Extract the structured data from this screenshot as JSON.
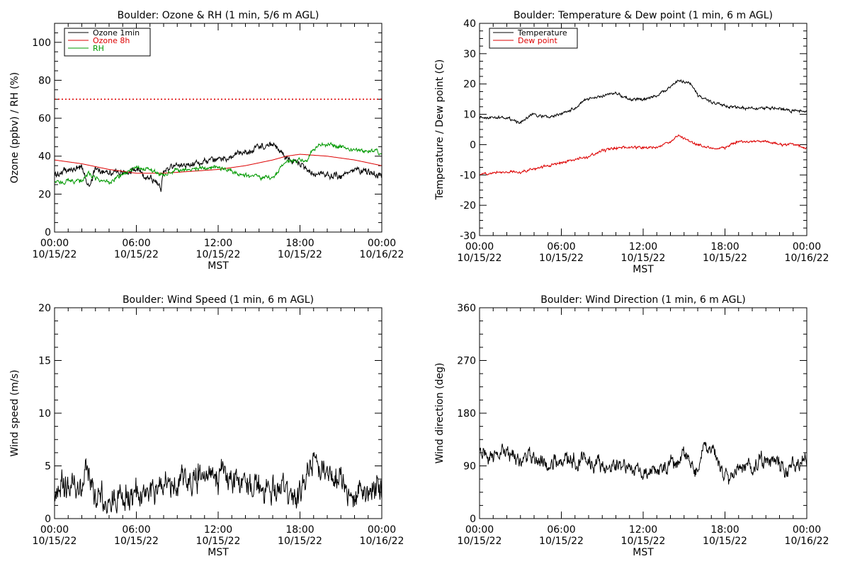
{
  "chart_data": [
    {
      "type": "line",
      "title": "Boulder: Ozone & RH (1 min, 5/6 m AGL)",
      "xlabel": "MST",
      "ylabel": "Ozone (ppbv) / RH (%)",
      "ylim": [
        0,
        110
      ],
      "yticks": [
        0,
        20,
        40,
        60,
        80,
        100
      ],
      "xlim": [
        0,
        24
      ],
      "xticks": [
        {
          "time": "00:00",
          "date": "10/15/22"
        },
        {
          "time": "06:00",
          "date": "10/15/22"
        },
        {
          "time": "12:00",
          "date": "10/15/22"
        },
        {
          "time": "18:00",
          "date": "10/15/22"
        },
        {
          "time": "00:00",
          "date": "10/16/22"
        }
      ],
      "legend_position": "top-left",
      "reference_lines": [
        {
          "y": 70,
          "color": "#dd0000",
          "style": "dotted"
        }
      ],
      "series": [
        {
          "name": "Ozone 1min",
          "color": "#000000",
          "x": [
            0,
            1,
            2,
            2.5,
            3,
            4,
            5,
            6,
            6.5,
            7,
            7.5,
            7.8,
            8,
            9,
            10,
            11,
            12,
            13,
            14,
            15,
            16,
            16.5,
            17,
            18,
            18.5,
            19,
            20,
            21,
            22,
            23,
            24
          ],
          "values": [
            30,
            33,
            34,
            24,
            33,
            32,
            31,
            33,
            30,
            29,
            26,
            22,
            33,
            35,
            36,
            37,
            38,
            40,
            42,
            45,
            46,
            43,
            39,
            36,
            32,
            31,
            30,
            29,
            33,
            32,
            30
          ]
        },
        {
          "name": "Ozone 8h",
          "color": "#dd0000",
          "x": [
            0,
            2,
            4,
            6,
            8,
            10,
            12,
            14,
            16,
            17,
            18,
            20,
            22,
            24
          ],
          "values": [
            38,
            36,
            33,
            31,
            31,
            32,
            33,
            35,
            38,
            40,
            41,
            40,
            38,
            35
          ]
        },
        {
          "name": "RH",
          "color": "#009900",
          "x": [
            0,
            1,
            2,
            2.5,
            3,
            4,
            5,
            6,
            7,
            8,
            9,
            10,
            11,
            12,
            13,
            14,
            15,
            16,
            16.5,
            17,
            18,
            18.5,
            19,
            19.5,
            20,
            21,
            22,
            23,
            24
          ],
          "values": [
            26,
            27,
            27,
            31,
            28,
            26,
            30,
            34,
            33,
            30,
            33,
            33,
            34,
            34,
            32,
            30,
            29,
            29,
            33,
            37,
            38,
            38,
            44,
            46,
            46,
            45,
            43,
            43,
            42
          ]
        }
      ]
    },
    {
      "type": "line",
      "title": "Boulder: Temperature & Dew point (1 min, 6 m AGL)",
      "xlabel": "MST",
      "ylabel": "Temperature / Dew point (C)",
      "ylim": [
        -30,
        40
      ],
      "yticks": [
        -30,
        -20,
        -10,
        0,
        10,
        20,
        30,
        40
      ],
      "xlim": [
        0,
        24
      ],
      "xticks": [
        {
          "time": "00:00",
          "date": "10/15/22"
        },
        {
          "time": "06:00",
          "date": "10/15/22"
        },
        {
          "time": "12:00",
          "date": "10/15/22"
        },
        {
          "time": "18:00",
          "date": "10/15/22"
        },
        {
          "time": "00:00",
          "date": "10/16/22"
        }
      ],
      "legend_position": "top-left",
      "series": [
        {
          "name": "Temperature",
          "color": "#000000",
          "x": [
            0,
            1,
            2,
            2.5,
            3,
            3.5,
            4,
            5,
            6,
            7,
            7.5,
            8,
            9,
            10,
            11,
            12,
            13,
            14,
            14.5,
            15,
            15.5,
            16,
            17,
            18,
            19,
            20,
            21,
            22,
            23,
            24
          ],
          "values": [
            9,
            9,
            9,
            8,
            7,
            9,
            10,
            9,
            10,
            12,
            14,
            15,
            16,
            17,
            15,
            15,
            16,
            19,
            21,
            21,
            20,
            16,
            14,
            13,
            12,
            12,
            12,
            12,
            11,
            11
          ]
        },
        {
          "name": "Dew point",
          "color": "#dd0000",
          "x": [
            0,
            1,
            2,
            3,
            4,
            5,
            6,
            7,
            8,
            9,
            10,
            11,
            12,
            13,
            14,
            14.5,
            15,
            16,
            17,
            18,
            19,
            20,
            21,
            22,
            23,
            24
          ],
          "values": [
            -10,
            -9,
            -9,
            -9,
            -8,
            -7,
            -6,
            -5,
            -4,
            -2,
            -1,
            -1,
            -1,
            -1,
            1,
            3,
            2,
            0,
            -1,
            -1,
            1,
            1,
            1,
            0,
            0,
            -1
          ]
        }
      ]
    },
    {
      "type": "line",
      "title": "Boulder: Wind Speed (1 min, 6 m AGL)",
      "xlabel": "MST",
      "ylabel": "Wind speed (m/s)",
      "ylim": [
        0,
        20
      ],
      "yticks": [
        0,
        5,
        10,
        15,
        20
      ],
      "xlim": [
        0,
        24
      ],
      "xticks": [
        {
          "time": "00:00",
          "date": "10/15/22"
        },
        {
          "time": "06:00",
          "date": "10/15/22"
        },
        {
          "time": "12:00",
          "date": "10/15/22"
        },
        {
          "time": "18:00",
          "date": "10/15/22"
        },
        {
          "time": "00:00",
          "date": "10/16/22"
        }
      ],
      "series": [
        {
          "color": "#000000",
          "x": [
            0,
            1,
            2,
            2.5,
            3,
            4,
            5,
            6,
            7,
            8,
            9,
            10,
            11,
            12,
            13,
            14,
            15,
            16,
            17,
            18,
            18.5,
            19,
            20,
            21,
            22,
            23,
            24
          ],
          "values": [
            2.5,
            3,
            2.8,
            4.5,
            2.2,
            1.8,
            2,
            2.2,
            2.5,
            3,
            3.5,
            4,
            4.2,
            4,
            3.8,
            3.5,
            3,
            2.8,
            2.2,
            2,
            5,
            5.5,
            4.5,
            3.5,
            2.5,
            3,
            2.5
          ]
        }
      ]
    },
    {
      "type": "line",
      "title": "Boulder: Wind Direction (1 min, 6 m AGL)",
      "xlabel": "MST",
      "ylabel": "Wind direction (deg)",
      "ylim": [
        0,
        360
      ],
      "yticks": [
        0,
        90,
        180,
        270,
        360
      ],
      "xlim": [
        0,
        24
      ],
      "xticks": [
        {
          "time": "00:00",
          "date": "10/15/22"
        },
        {
          "time": "06:00",
          "date": "10/15/22"
        },
        {
          "time": "12:00",
          "date": "10/15/22"
        },
        {
          "time": "18:00",
          "date": "10/15/22"
        },
        {
          "time": "00:00",
          "date": "10/16/22"
        }
      ],
      "series": [
        {
          "color": "#000000",
          "x": [
            0,
            1,
            2,
            3,
            4,
            5,
            6,
            7,
            8,
            9,
            10,
            11,
            12,
            13,
            14,
            15,
            15.5,
            16,
            16.5,
            17,
            17.5,
            18,
            19,
            20,
            21,
            22,
            22.5,
            23,
            24
          ],
          "values": [
            110,
            105,
            110,
            100,
            105,
            95,
            100,
            100,
            95,
            90,
            95,
            85,
            80,
            85,
            90,
            110,
            100,
            80,
            125,
            120,
            95,
            70,
            85,
            90,
            100,
            100,
            75,
            95,
            100
          ]
        }
      ]
    }
  ]
}
